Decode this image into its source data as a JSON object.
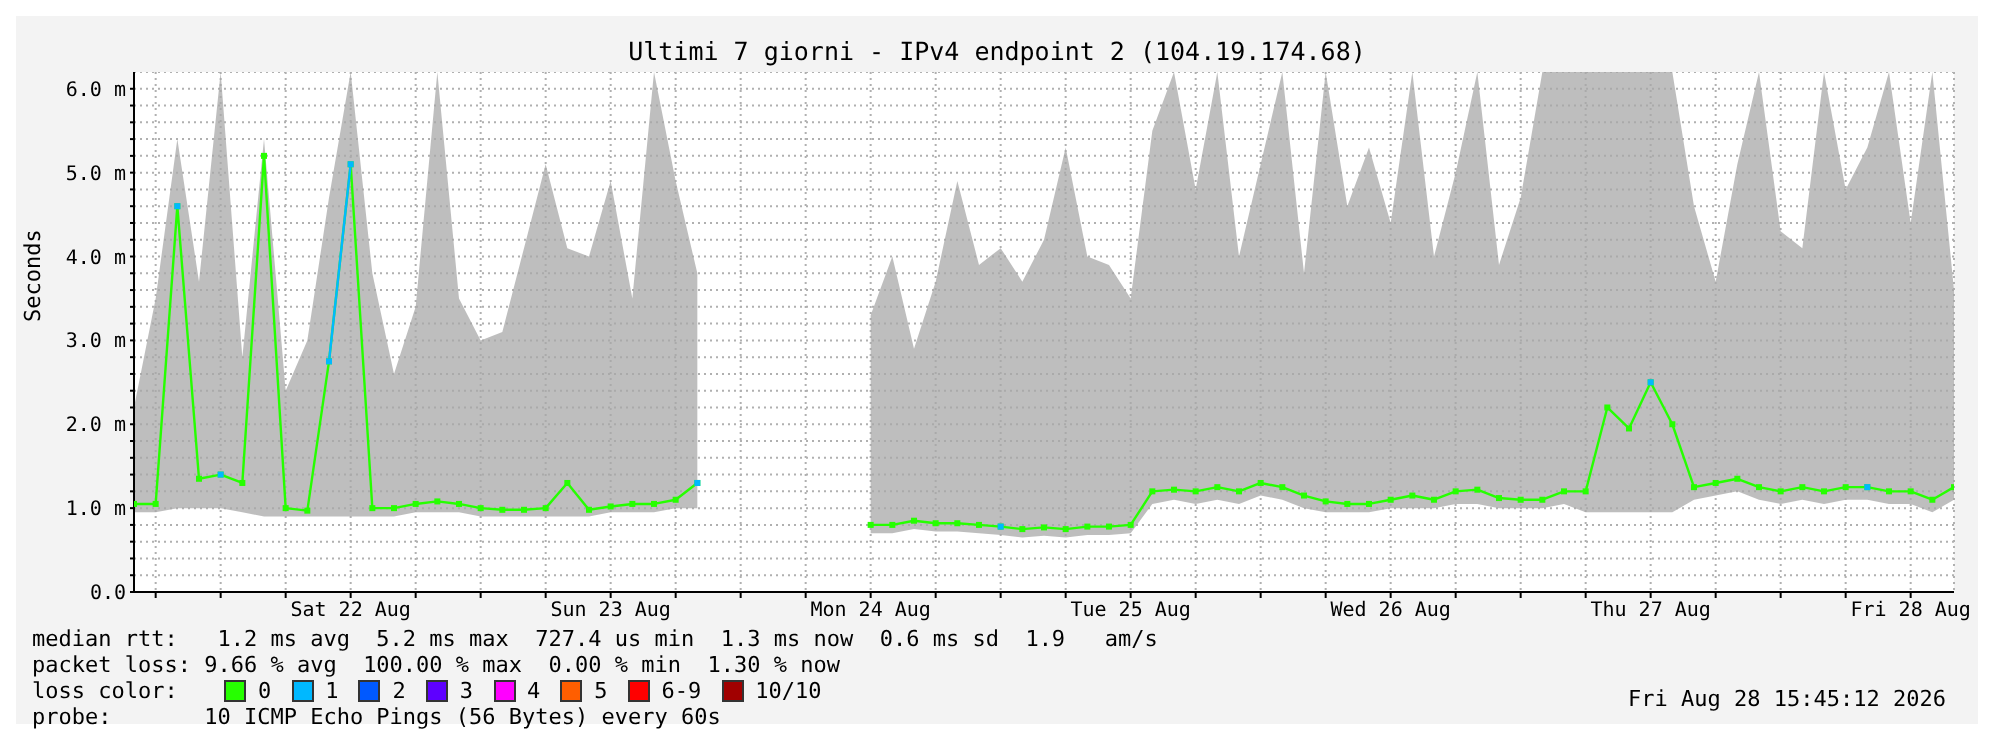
{
  "chart_data": {
    "type": "line",
    "title": "Ultimi 7 giorni - IPv4 endpoint 2 (104.19.174.68)",
    "ylabel": "Seconds",
    "legend_title": "loss color:",
    "legend": "bottom",
    "grid": true,
    "marker": "square",
    "xlim": [
      "2026-08-21T16:00",
      "2026-08-28T16:00"
    ],
    "xticks": [
      {
        "value": "2026-08-21T18:00",
        "label": null
      },
      {
        "value": "2026-08-22T00:00",
        "label": null
      },
      {
        "value": "2026-08-22T06:00",
        "label": null
      },
      {
        "value": "2026-08-22T12:00",
        "label": "Sat 22 Aug"
      },
      {
        "value": "2026-08-22T18:00",
        "label": null
      },
      {
        "value": "2026-08-23T00:00",
        "label": null
      },
      {
        "value": "2026-08-23T06:00",
        "label": null
      },
      {
        "value": "2026-08-23T12:00",
        "label": "Sun 23 Aug"
      },
      {
        "value": "2026-08-23T18:00",
        "label": null
      },
      {
        "value": "2026-08-24T00:00",
        "label": null
      },
      {
        "value": "2026-08-24T06:00",
        "label": null
      },
      {
        "value": "2026-08-24T12:00",
        "label": "Mon 24 Aug"
      },
      {
        "value": "2026-08-24T18:00",
        "label": null
      },
      {
        "value": "2026-08-25T00:00",
        "label": null
      },
      {
        "value": "2026-08-25T06:00",
        "label": null
      },
      {
        "value": "2026-08-25T12:00",
        "label": "Tue 25 Aug"
      },
      {
        "value": "2026-08-25T18:00",
        "label": null
      },
      {
        "value": "2026-08-26T00:00",
        "label": null
      },
      {
        "value": "2026-08-26T06:00",
        "label": null
      },
      {
        "value": "2026-08-26T12:00",
        "label": "Wed 26 Aug"
      },
      {
        "value": "2026-08-26T18:00",
        "label": null
      },
      {
        "value": "2026-08-27T00:00",
        "label": null
      },
      {
        "value": "2026-08-27T06:00",
        "label": null
      },
      {
        "value": "2026-08-27T12:00",
        "label": "Thu 27 Aug"
      },
      {
        "value": "2026-08-27T18:00",
        "label": null
      },
      {
        "value": "2026-08-28T00:00",
        "label": null
      },
      {
        "value": "2026-08-28T06:00",
        "label": null
      },
      {
        "value": "2026-08-28T12:00",
        "label": "Fri 28 Aug"
      }
    ],
    "ylim": [
      0,
      6.2
    ],
    "yticks": [
      {
        "value": 0,
        "label": "0.0"
      },
      {
        "value": 0.2,
        "label": null
      },
      {
        "value": 0.4,
        "label": null
      },
      {
        "value": 0.6,
        "label": null
      },
      {
        "value": 0.8,
        "label": null
      },
      {
        "value": 1,
        "label": "1.0 m"
      },
      {
        "value": 1.2,
        "label": null
      },
      {
        "value": 1.4,
        "label": null
      },
      {
        "value": 1.6,
        "label": null
      },
      {
        "value": 1.8,
        "label": null
      },
      {
        "value": 2,
        "label": "2.0 m"
      },
      {
        "value": 2.2,
        "label": null
      },
      {
        "value": 2.4,
        "label": null
      },
      {
        "value": 2.6,
        "label": null
      },
      {
        "value": 2.8,
        "label": null
      },
      {
        "value": 3,
        "label": "3.0 m"
      },
      {
        "value": 3.2,
        "label": null
      },
      {
        "value": 3.4,
        "label": null
      },
      {
        "value": 3.6,
        "label": null
      },
      {
        "value": 3.8,
        "label": null
      },
      {
        "value": 4,
        "label": "4.0 m"
      },
      {
        "value": 4.2,
        "label": null
      },
      {
        "value": 4.4,
        "label": null
      },
      {
        "value": 4.6,
        "label": null
      },
      {
        "value": 4.8,
        "label": null
      },
      {
        "value": 5,
        "label": "5.0 m"
      },
      {
        "value": 5.2,
        "label": null
      },
      {
        "value": 5.4,
        "label": null
      },
      {
        "value": 5.6,
        "label": null
      },
      {
        "value": 5.8,
        "label": null
      },
      {
        "value": 6,
        "label": "6.0 m"
      }
    ],
    "x": [
      "2026-08-21T16:00",
      "2026-08-21T18:00",
      "2026-08-21T20:00",
      "2026-08-21T22:00",
      "2026-08-22T00:00",
      "2026-08-22T02:00",
      "2026-08-22T04:00",
      "2026-08-22T06:00",
      "2026-08-22T08:00",
      "2026-08-22T10:00",
      "2026-08-22T12:00",
      "2026-08-22T14:00",
      "2026-08-22T16:00",
      "2026-08-22T18:00",
      "2026-08-22T20:00",
      "2026-08-22T22:00",
      "2026-08-23T00:00",
      "2026-08-23T02:00",
      "2026-08-23T04:00",
      "2026-08-23T06:00",
      "2026-08-23T08:00",
      "2026-08-23T10:00",
      "2026-08-23T12:00",
      "2026-08-23T14:00",
      "2026-08-23T16:00",
      "2026-08-23T18:00",
      "2026-08-23T20:00",
      "2026-08-23T22:00",
      "2026-08-24T00:00",
      "2026-08-24T02:00",
      "2026-08-24T04:00",
      "2026-08-24T06:00",
      "2026-08-24T08:00",
      "2026-08-24T10:00",
      "2026-08-24T12:00",
      "2026-08-24T14:00",
      "2026-08-24T16:00",
      "2026-08-24T18:00",
      "2026-08-24T20:00",
      "2026-08-24T22:00",
      "2026-08-25T00:00",
      "2026-08-25T02:00",
      "2026-08-25T04:00",
      "2026-08-25T06:00",
      "2026-08-25T08:00",
      "2026-08-25T10:00",
      "2026-08-25T12:00",
      "2026-08-25T14:00",
      "2026-08-25T16:00",
      "2026-08-25T18:00",
      "2026-08-25T20:00",
      "2026-08-25T22:00",
      "2026-08-26T00:00",
      "2026-08-26T02:00",
      "2026-08-26T04:00",
      "2026-08-26T06:00",
      "2026-08-26T08:00",
      "2026-08-26T10:00",
      "2026-08-26T12:00",
      "2026-08-26T14:00",
      "2026-08-26T16:00",
      "2026-08-26T18:00",
      "2026-08-26T20:00",
      "2026-08-26T22:00",
      "2026-08-27T00:00",
      "2026-08-27T02:00",
      "2026-08-27T04:00",
      "2026-08-27T06:00",
      "2026-08-27T08:00",
      "2026-08-27T10:00",
      "2026-08-27T12:00",
      "2026-08-27T14:00",
      "2026-08-27T16:00",
      "2026-08-27T18:00",
      "2026-08-27T20:00",
      "2026-08-27T22:00",
      "2026-08-28T00:00",
      "2026-08-28T02:00",
      "2026-08-28T04:00",
      "2026-08-28T06:00",
      "2026-08-28T08:00",
      "2026-08-28T10:00",
      "2026-08-28T12:00",
      "2026-08-28T14:00",
      "2026-08-28T16:00"
    ],
    "series": [
      {
        "name": "0",
        "color": "#26ff00",
        "values": [
          1.05,
          1.05,
          4.6,
          1.35,
          1.4,
          1.3,
          5.2,
          1.0,
          0.97,
          2.75,
          5.1,
          1.0,
          1.0,
          1.05,
          1.08,
          1.05,
          1.0,
          0.98,
          0.98,
          1.0,
          1.3,
          0.98,
          1.02,
          1.05,
          1.05,
          1.1,
          1.3,
          null,
          null,
          null,
          null,
          null,
          null,
          null,
          0.8,
          0.8,
          0.85,
          0.82,
          0.82,
          0.8,
          0.78,
          0.75,
          0.77,
          0.75,
          0.78,
          0.78,
          0.8,
          1.2,
          1.22,
          1.2,
          1.25,
          1.2,
          1.3,
          1.25,
          1.15,
          1.08,
          1.05,
          1.05,
          1.1,
          1.15,
          1.1,
          1.2,
          1.22,
          1.12,
          1.1,
          1.1,
          1.2,
          1.2,
          2.2,
          1.95,
          2.5,
          2.0,
          1.25,
          1.3,
          1.35,
          1.25,
          1.2,
          1.25,
          1.2,
          1.25,
          1.25,
          1.2,
          1.2,
          1.1,
          1.25
        ],
        "lower": [
          0.95,
          0.95,
          1.0,
          1.0,
          1.0,
          0.95,
          0.9,
          0.9,
          0.9,
          0.9,
          0.9,
          0.9,
          0.9,
          0.95,
          0.95,
          0.95,
          0.9,
          0.9,
          0.9,
          0.9,
          0.9,
          0.9,
          0.95,
          0.95,
          0.95,
          1.0,
          1.0,
          null,
          null,
          null,
          null,
          null,
          null,
          null,
          0.7,
          0.7,
          0.75,
          0.72,
          0.72,
          0.7,
          0.68,
          0.65,
          0.67,
          0.65,
          0.68,
          0.68,
          0.7,
          1.05,
          1.1,
          1.05,
          1.1,
          1.05,
          1.15,
          1.1,
          1.0,
          0.95,
          0.95,
          0.95,
          1.0,
          1.0,
          1.0,
          1.05,
          1.05,
          1.0,
          1.0,
          1.0,
          1.05,
          0.95,
          0.95,
          0.95,
          0.95,
          0.95,
          1.1,
          1.15,
          1.2,
          1.1,
          1.05,
          1.1,
          1.05,
          1.1,
          1.1,
          1.05,
          1.05,
          0.95,
          1.1
        ],
        "upper": [
          2.2,
          3.5,
          5.4,
          3.7,
          6.2,
          2.8,
          5.4,
          2.4,
          3.0,
          4.7,
          6.2,
          3.8,
          2.6,
          3.4,
          6.2,
          3.5,
          3.0,
          3.1,
          4.1,
          5.1,
          4.1,
          4.0,
          4.9,
          3.5,
          6.2,
          4.9,
          3.8,
          null,
          null,
          null,
          null,
          null,
          null,
          null,
          3.3,
          4.0,
          2.9,
          3.7,
          4.9,
          3.9,
          4.1,
          3.7,
          4.2,
          5.3,
          4.0,
          3.9,
          3.5,
          5.5,
          6.2,
          4.8,
          6.2,
          4.0,
          5.1,
          6.2,
          3.8,
          6.2,
          4.6,
          5.3,
          4.4,
          6.2,
          4.0,
          5.0,
          6.2,
          3.9,
          4.7,
          6.2,
          6.2,
          6.2,
          6.2,
          6.2,
          6.2,
          6.2,
          4.6,
          3.7,
          5.1,
          6.2,
          4.3,
          4.1,
          6.2,
          4.8,
          5.3,
          6.2,
          4.4,
          6.2,
          3.6
        ]
      },
      {
        "name": "1",
        "color": "#00b8ff",
        "values": [
          null,
          null,
          4.6,
          null,
          1.4,
          null,
          null,
          null,
          null,
          2.75,
          5.1,
          null,
          null,
          null,
          null,
          null,
          null,
          null,
          null,
          null,
          null,
          null,
          null,
          null,
          null,
          null,
          1.3,
          null,
          null,
          null,
          null,
          null,
          null,
          null,
          null,
          null,
          null,
          null,
          null,
          null,
          0.78,
          null,
          null,
          null,
          null,
          null,
          null,
          null,
          null,
          null,
          null,
          null,
          null,
          null,
          null,
          null,
          null,
          null,
          null,
          null,
          null,
          null,
          null,
          null,
          null,
          null,
          null,
          null,
          null,
          null,
          2.5,
          null,
          null,
          null,
          null,
          null,
          null,
          null,
          null,
          null,
          1.25,
          null,
          null,
          null,
          null
        ]
      },
      {
        "name": "2",
        "color": "#0059ff",
        "values": [
          null,
          null,
          null,
          null,
          null,
          null,
          null,
          null,
          null,
          null,
          null,
          null,
          null,
          null,
          null,
          null,
          null,
          null,
          null,
          null,
          null,
          null,
          null,
          null,
          null,
          null,
          null,
          null,
          null,
          null,
          null,
          null,
          null,
          null,
          null,
          null,
          null,
          null,
          null,
          null,
          null,
          null,
          null,
          null,
          null,
          null,
          null,
          null,
          null,
          null,
          null,
          null,
          null,
          null,
          null,
          null,
          null,
          null,
          null,
          null,
          null,
          null,
          null,
          null,
          null,
          null,
          null,
          null,
          null,
          null,
          null,
          null,
          null,
          null,
          null,
          null,
          null,
          null,
          null,
          null,
          null,
          null,
          null,
          null,
          null
        ]
      },
      {
        "name": "3",
        "color": "#5e00ff",
        "values": [
          null,
          null,
          null,
          null,
          null,
          null,
          null,
          null,
          null,
          null,
          null,
          null,
          null,
          null,
          null,
          null,
          null,
          null,
          null,
          null,
          null,
          null,
          null,
          null,
          null,
          null,
          null,
          null,
          null,
          null,
          null,
          null,
          null,
          null,
          null,
          null,
          null,
          null,
          null,
          null,
          null,
          null,
          null,
          null,
          null,
          null,
          null,
          null,
          null,
          null,
          null,
          null,
          null,
          null,
          null,
          null,
          null,
          null,
          null,
          null,
          null,
          null,
          null,
          null,
          null,
          null,
          null,
          null,
          null,
          null,
          null,
          null,
          null,
          null,
          null,
          null,
          null,
          null,
          null,
          null,
          null,
          null,
          null,
          null,
          null
        ]
      },
      {
        "name": "4",
        "color": "#ff00ff",
        "values": [
          null,
          null,
          null,
          null,
          null,
          null,
          null,
          null,
          null,
          null,
          null,
          null,
          null,
          null,
          null,
          null,
          null,
          null,
          null,
          null,
          null,
          null,
          null,
          null,
          null,
          null,
          null,
          null,
          null,
          null,
          null,
          null,
          null,
          null,
          null,
          null,
          null,
          null,
          null,
          null,
          null,
          null,
          null,
          null,
          null,
          null,
          null,
          null,
          null,
          null,
          null,
          null,
          null,
          null,
          null,
          null,
          null,
          null,
          null,
          null,
          null,
          null,
          null,
          null,
          null,
          null,
          null,
          null,
          null,
          null,
          null,
          null,
          null,
          null,
          null,
          null,
          null,
          null,
          null,
          null,
          null,
          null,
          null,
          null,
          null
        ]
      },
      {
        "name": "5",
        "color": "#ff5e00",
        "values": [
          null,
          null,
          null,
          null,
          null,
          null,
          null,
          null,
          null,
          null,
          null,
          null,
          null,
          null,
          null,
          null,
          null,
          null,
          null,
          null,
          null,
          null,
          null,
          null,
          null,
          null,
          null,
          null,
          null,
          null,
          null,
          null,
          null,
          null,
          null,
          null,
          null,
          null,
          null,
          null,
          null,
          null,
          null,
          null,
          null,
          null,
          null,
          null,
          null,
          null,
          null,
          null,
          null,
          null,
          null,
          null,
          null,
          null,
          null,
          null,
          null,
          null,
          null,
          null,
          null,
          null,
          null,
          null,
          null,
          null,
          null,
          null,
          null,
          null,
          null,
          null,
          null,
          null,
          null,
          null,
          null,
          null,
          null,
          null,
          null
        ]
      },
      {
        "name": "6-9",
        "color": "#ff0000",
        "values": [
          null,
          null,
          null,
          null,
          null,
          null,
          null,
          null,
          null,
          null,
          null,
          null,
          null,
          null,
          null,
          null,
          null,
          null,
          null,
          null,
          null,
          null,
          null,
          null,
          null,
          null,
          null,
          null,
          null,
          null,
          null,
          null,
          null,
          null,
          null,
          null,
          null,
          null,
          null,
          null,
          null,
          null,
          null,
          null,
          null,
          null,
          null,
          null,
          null,
          null,
          null,
          null,
          null,
          null,
          null,
          null,
          null,
          null,
          null,
          null,
          null,
          null,
          null,
          null,
          null,
          null,
          null,
          null,
          null,
          null,
          null,
          null,
          null,
          null,
          null,
          null,
          null,
          null,
          null,
          null,
          null,
          null,
          null,
          null,
          null
        ]
      },
      {
        "name": "10/10",
        "color": "#a10000",
        "values": [
          null,
          null,
          null,
          null,
          null,
          null,
          null,
          null,
          null,
          null,
          null,
          null,
          null,
          null,
          null,
          null,
          null,
          null,
          null,
          null,
          null,
          null,
          null,
          null,
          null,
          null,
          null,
          null,
          null,
          null,
          null,
          null,
          null,
          null,
          null,
          null,
          null,
          null,
          null,
          null,
          null,
          null,
          null,
          null,
          null,
          null,
          null,
          null,
          null,
          null,
          null,
          null,
          null,
          null,
          null,
          null,
          null,
          null,
          null,
          null,
          null,
          null,
          null,
          null,
          null,
          null,
          null,
          null,
          null,
          null,
          null,
          null,
          null,
          null,
          null,
          null,
          null,
          null,
          null,
          null,
          null,
          null,
          null,
          null,
          null
        ]
      }
    ],
    "annotations": [
      "median rtt:   1.2 ms avg  5.2 ms max  727.4 us min  1.3 ms now  0.6 ms sd  1.9   am/s",
      "packet loss: 9.66 % avg  100.00 % max  0.00 % min  1.30 % now",
      "probe:       10 ICMP Echo Pings (56 Bytes) every 60s",
      "Fri Aug 28 15:45:12 2026"
    ]
  }
}
